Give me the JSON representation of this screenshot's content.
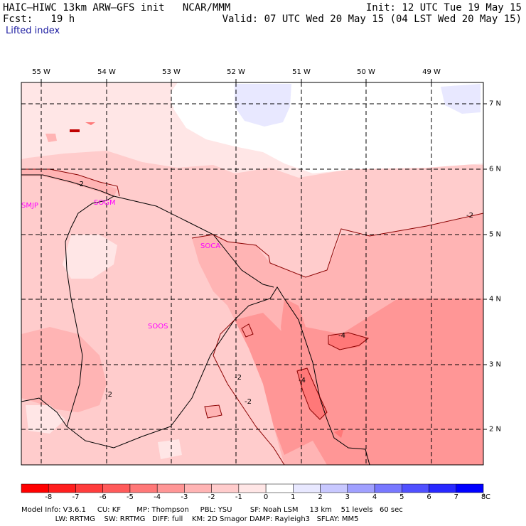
{
  "header": {
    "model_title": "HAIC–HIWC 13km ARW–GFS init   NCAR/MMM",
    "forecast": "Fcst:   19 h",
    "field": "Lifted index",
    "init": "Init: 12 UTC Tue 19 May 15",
    "valid": "Valid: 07 UTC Wed 20 May 15 (04 LST Wed 20 May 15)"
  },
  "axes": {
    "lon_labels": [
      "55 W",
      "54 W",
      "53 W",
      "52 W",
      "51 W",
      "50 W",
      "49 W"
    ],
    "lat_labels": [
      "7 N",
      "6 N",
      "5 N",
      "4 N",
      "3 N",
      "2 N"
    ]
  },
  "stations": [
    "SMJP",
    "SOGM",
    "SOCA",
    "SOOS"
  ],
  "contour_labels": [
    "-2",
    "-2",
    "-2",
    "-2",
    "-2",
    "-4",
    "-4",
    "-2",
    "-2"
  ],
  "colorbar": {
    "labels": [
      "-8",
      "-7",
      "-6",
      "-5",
      "-4",
      "-3",
      "-2",
      "-1",
      "0",
      "1",
      "2",
      "3",
      "4",
      "5",
      "6",
      "7",
      "8"
    ],
    "unit": "°C",
    "colors": [
      "#ff0000",
      "#ff1e1e",
      "#ff3c3c",
      "#ff5a5a",
      "#ff7878",
      "#ff9696",
      "#ffb4b4",
      "#ffcccc",
      "#ffe6e6",
      "#ffffff",
      "#e8e8ff",
      "#c8c8ff",
      "#a0a0ff",
      "#7878ff",
      "#5050ff",
      "#2828ff",
      "#0000ff"
    ]
  },
  "footer": {
    "line1": "Model Info: V3.6.1     CU: KF       MP: Thompson     PBL: YSU        SF: Noah LSM     13 km    51 levels   60 sec",
    "line2": "               LW: RRTMG    SW: RRTMG   DIFF: full    KM: 2D Smagor DAMP: Rayleigh3   SFLAY: MM5"
  }
}
